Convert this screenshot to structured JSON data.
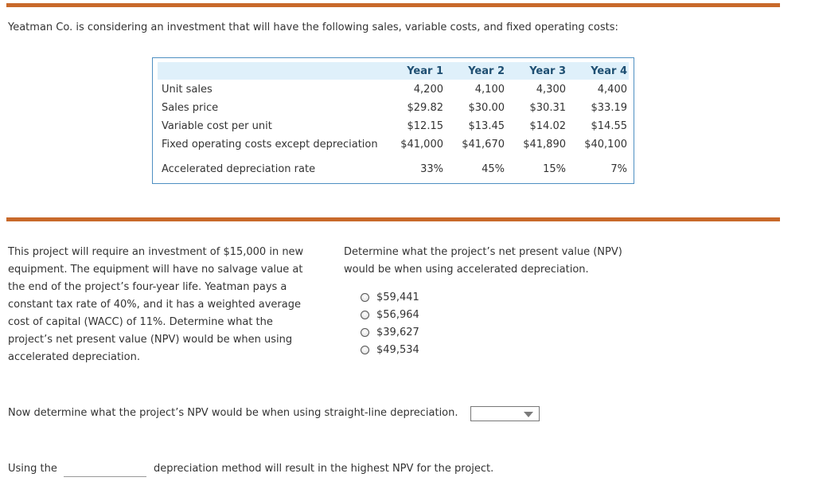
{
  "intro": "Yeatman Co. is considering an investment that will have the following sales, variable costs, and fixed operating costs:",
  "table": {
    "headers": [
      "Year 1",
      "Year 2",
      "Year 3",
      "Year 4"
    ],
    "rows": [
      {
        "label": "Unit sales",
        "values": [
          "4,200",
          "4,100",
          "4,300",
          "4,400"
        ]
      },
      {
        "label": "Sales price",
        "values": [
          "$29.82",
          "$30.00",
          "$30.31",
          "$33.19"
        ]
      },
      {
        "label": "Variable cost per unit",
        "values": [
          "$12.15",
          "$13.45",
          "$14.02",
          "$14.55"
        ]
      },
      {
        "label": "Fixed operating costs except depreciation",
        "values": [
          "$41,000",
          "$41,670",
          "$41,890",
          "$40,100"
        ]
      },
      {
        "label": "Accelerated depreciation rate",
        "values": [
          "33%",
          "45%",
          "15%",
          "7%"
        ]
      }
    ]
  },
  "paragraph": "This project will require an investment of $15,000 in new equipment. The equipment will have no salvage value at the end of the project’s four-year life. Yeatman pays a constant tax rate of 40%, and it has a weighted average cost of capital (WACC) of 11%. Determine what the project’s net present value (NPV) would be when using accelerated depreciation.",
  "question": "Determine what the project’s net present value (NPV) would be when using accelerated depreciation.",
  "options": [
    "$59,441",
    "$56,964",
    "$39,627",
    "$49,534"
  ],
  "straight_line_prompt": "Now determine what the project’s NPV would be when using straight-line depreciation.",
  "dropdown_value": "",
  "using_prefix": "Using the",
  "using_suffix": "depreciation method will result in the highest NPV for the project."
}
